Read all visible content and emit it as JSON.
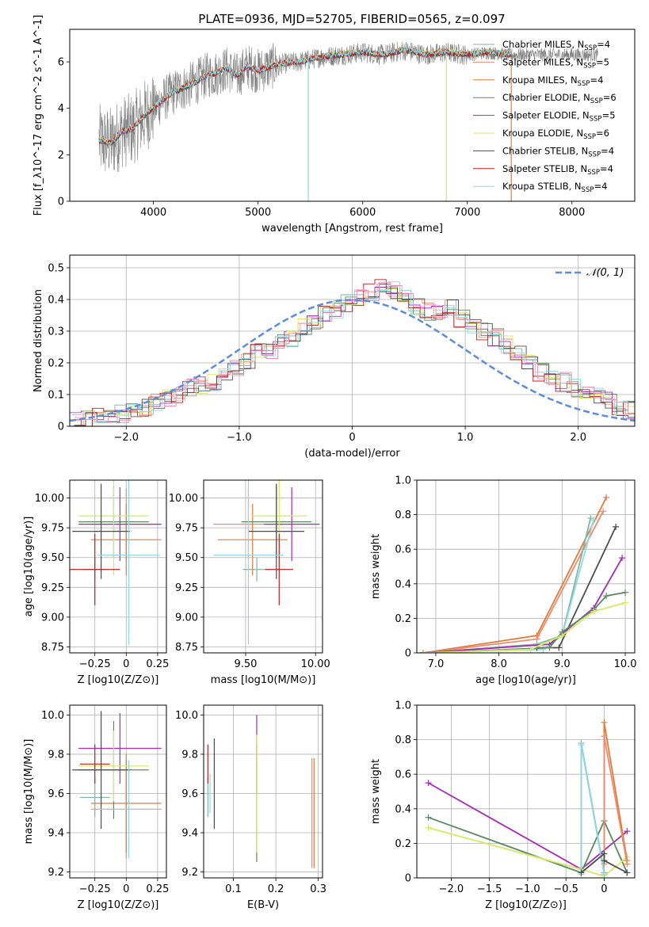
{
  "suptitle": "PLATE=0936, MJD=52705, FIBERID=0565, z=0.097",
  "models": [
    {
      "name": "Chabrier MILES",
      "n": "4",
      "color": "#7fb6a8"
    },
    {
      "name": "Salpeter MILES",
      "n": "5",
      "color": "#f08a6c"
    },
    {
      "name": "Kroupa MILES",
      "n": "4",
      "color": "#e07b39"
    },
    {
      "name": "Chabrier ELODIE",
      "n": "6",
      "color": "#5a8a60"
    },
    {
      "name": "Salpeter ELODIE",
      "n": "5",
      "color": "#a62bb8"
    },
    {
      "name": "Kroupa ELODIE",
      "n": "6",
      "color": "#d8e860"
    },
    {
      "name": "Chabrier STELIB",
      "n": "4",
      "color": "#4d4d4d"
    },
    {
      "name": "Salpeter STELIB",
      "n": "4",
      "color": "#b82020"
    },
    {
      "name": "Kroupa STELIB",
      "n": "4",
      "color": "#8ed8e0"
    }
  ],
  "extra_colors": {
    "pink": "#f08cb8",
    "teal": "#6fc4c4",
    "data_gray": "#808080",
    "normal_curve": "#5b8dd9"
  },
  "chart_data": [
    {
      "type": "line",
      "id": "spectrum",
      "xlabel": "wavelength [Angstrom, rest frame]",
      "ylabel": "Flux [f_λ10^-17 erg cm^-2 s^-1 A^-1]",
      "xlim": [
        3200,
        8600
      ],
      "ylim": [
        0,
        7.4
      ],
      "xticks": [
        4000,
        5000,
        6000,
        7000,
        8000
      ],
      "yticks": [
        0,
        2,
        4,
        6
      ],
      "legend": "top-right",
      "model_curve_x": [
        3480,
        3600,
        3700,
        3800,
        3900,
        4000,
        4100,
        4200,
        4300,
        4400,
        4500,
        4600,
        4700,
        4800,
        4900,
        5000,
        5200,
        5400,
        5600,
        5800,
        6000,
        6200,
        6400,
        6600,
        6800,
        7000,
        7200,
        7400
      ],
      "model_curve_y": [
        2.6,
        2.5,
        3.0,
        3.1,
        3.6,
        4.0,
        4.4,
        4.7,
        4.9,
        5.1,
        5.4,
        5.5,
        5.7,
        5.4,
        5.8,
        5.6,
        5.9,
        6.0,
        6.2,
        6.3,
        6.4,
        6.3,
        6.5,
        6.3,
        6.4,
        6.3,
        6.4,
        6.3
      ]
    },
    {
      "type": "histogram",
      "id": "residuals",
      "xlabel": "(data-model)/error",
      "ylabel": "Normed distribution",
      "xlim": [
        -2.5,
        2.5
      ],
      "ylim": [
        0,
        0.54
      ],
      "xticks": [
        -2,
        -1,
        0,
        1,
        2
      ],
      "yticks": [
        0.0,
        0.1,
        0.2,
        0.3,
        0.4,
        0.5
      ],
      "legend_label": "𝒩(0, 1)",
      "legend": "top-right",
      "bin_width": 0.1,
      "bin_start": -2.5,
      "series_values": [
        0.02,
        0.02,
        0.03,
        0.03,
        0.04,
        0.05,
        0.06,
        0.08,
        0.09,
        0.1,
        0.12,
        0.13,
        0.14,
        0.16,
        0.19,
        0.21,
        0.23,
        0.24,
        0.26,
        0.28,
        0.31,
        0.33,
        0.35,
        0.37,
        0.39,
        0.41,
        0.42,
        0.45,
        0.43,
        0.4,
        0.38,
        0.36,
        0.35,
        0.37,
        0.34,
        0.31,
        0.3,
        0.28,
        0.26,
        0.23,
        0.2,
        0.17,
        0.15,
        0.14,
        0.12,
        0.1,
        0.09,
        0.08,
        0.06,
        0.05
      ]
    },
    {
      "type": "errorbar",
      "id": "age_vs_Z",
      "xlabel": "Z [log10(Z/Z⊙)]",
      "ylabel": "age [log10(age/yr)]",
      "xlim": [
        -0.45,
        0.32
      ],
      "ylim": [
        8.7,
        10.15
      ],
      "xticks": [
        -0.25,
        0.0,
        0.25
      ],
      "yticks": [
        8.75,
        9.0,
        9.25,
        9.5,
        9.75,
        10.0
      ],
      "points": [
        {
          "x": -0.25,
          "xerr": 0.1,
          "y": 9.4,
          "yerr": 0.1,
          "c": 0
        },
        {
          "x": 0.0,
          "xerr": 0.28,
          "y": 9.78,
          "yerr": 0.3,
          "c": 1
        },
        {
          "x": 0.0,
          "xerr": 0.28,
          "y": 9.65,
          "yerr": 0.3,
          "c": 2
        },
        {
          "x": -0.1,
          "xerr": 0.28,
          "y": 9.8,
          "yerr": 0.3,
          "c": 3
        },
        {
          "x": -0.05,
          "xerr": 0.33,
          "y": 9.78,
          "yerr": 0.31,
          "c": 4
        },
        {
          "x": -0.1,
          "xerr": 0.28,
          "y": 9.85,
          "yerr": 0.5,
          "c": 5
        },
        {
          "x": -0.2,
          "xerr": 0.23,
          "y": 9.72,
          "yerr": 0.4,
          "c": 6
        },
        {
          "x": -0.25,
          "xerr": 0.2,
          "y": 9.4,
          "yerr": 0.3,
          "c": 7
        },
        {
          "x": 0.02,
          "xerr": 0.25,
          "y": 9.52,
          "yerr": 0.75,
          "c": 8
        }
      ]
    },
    {
      "type": "errorbar",
      "id": "age_vs_mass",
      "xlabel": "mass [log10(M/M⊙)]",
      "ylabel": "",
      "xlim": [
        9.2,
        10.05
      ],
      "ylim": [
        8.7,
        10.15
      ],
      "xticks": [
        9.5,
        10.0
      ],
      "yticks": [
        8.75,
        9.0,
        9.25,
        9.5,
        9.75,
        10.0
      ],
      "points": [
        {
          "x": 9.58,
          "xerr": 0.1,
          "y": 9.4,
          "yerr": 0.1,
          "c": 0
        },
        {
          "x": 9.52,
          "xerr": 0.25,
          "y": 9.78,
          "yerr": 0.3,
          "c": 1
        },
        {
          "x": 9.55,
          "xerr": 0.25,
          "y": 9.65,
          "yerr": 0.3,
          "c": 2
        },
        {
          "x": 9.72,
          "xerr": 0.25,
          "y": 9.8,
          "yerr": 0.3,
          "c": 3
        },
        {
          "x": 9.83,
          "xerr": 0.2,
          "y": 9.78,
          "yerr": 0.31,
          "c": 4
        },
        {
          "x": 9.74,
          "xerr": 0.2,
          "y": 9.85,
          "yerr": 0.5,
          "c": 5
        },
        {
          "x": 9.72,
          "xerr": 0.2,
          "y": 9.72,
          "yerr": 0.4,
          "c": 6
        },
        {
          "x": 9.74,
          "xerr": 0.1,
          "y": 9.4,
          "yerr": 0.3,
          "c": 7
        },
        {
          "x": 9.52,
          "xerr": 0.25,
          "y": 9.52,
          "yerr": 0.75,
          "c": 8
        }
      ]
    },
    {
      "type": "line",
      "id": "weight_vs_age",
      "xlabel": "age [log10(age/yr)]",
      "ylabel": "mass weight",
      "xlim": [
        6.7,
        10.15
      ],
      "ylim": [
        0,
        1.0
      ],
      "xticks": [
        7,
        8,
        9,
        10
      ],
      "yticks": [
        0.0,
        0.2,
        0.4,
        0.6,
        0.8,
        1.0
      ],
      "series": [
        {
          "c": 2,
          "x": [
            6.8,
            8.6,
            9.7
          ],
          "y": [
            0.0,
            0.1,
            0.9
          ]
        },
        {
          "c": 1,
          "x": [
            6.8,
            8.6,
            9.65
          ],
          "y": [
            0.0,
            0.08,
            0.82
          ]
        },
        {
          "c": 0,
          "x": [
            6.8,
            8.6,
            9.0,
            9.45
          ],
          "y": [
            0.0,
            0.05,
            0.1,
            0.78
          ]
        },
        {
          "c": 8,
          "x": [
            6.8,
            8.7,
            9.0,
            9.5
          ],
          "y": [
            0.0,
            0.02,
            0.1,
            0.77
          ]
        },
        {
          "c": 6,
          "x": [
            8.6,
            8.95,
            9.85
          ],
          "y": [
            0.03,
            0.03,
            0.73
          ]
        },
        {
          "c": 4,
          "x": [
            6.8,
            8.8,
            9.5,
            9.95
          ],
          "y": [
            0.0,
            0.05,
            0.26,
            0.55
          ]
        },
        {
          "c": 3,
          "x": [
            6.8,
            8.8,
            9.0,
            9.5,
            9.7,
            10.0
          ],
          "y": [
            0.0,
            0.03,
            0.12,
            0.25,
            0.33,
            0.35
          ]
        },
        {
          "c": 5,
          "x": [
            6.8,
            8.5,
            9.0,
            9.5,
            10.0
          ],
          "y": [
            0.0,
            0.02,
            0.1,
            0.24,
            0.29
          ]
        }
      ]
    },
    {
      "type": "errorbar",
      "id": "mass_vs_Z",
      "xlabel": "Z [log10(Z/Z⊙)]",
      "ylabel": "mass [log10(M/M⊙)]",
      "xlim": [
        -0.45,
        0.32
      ],
      "ylim": [
        9.17,
        10.05
      ],
      "xticks": [
        -0.25,
        0.0,
        0.25
      ],
      "yticks": [
        9.2,
        9.4,
        9.6,
        9.8,
        10.0
      ],
      "points": [
        {
          "x": -0.25,
          "xerr": 0.12,
          "y": 9.58,
          "yerr": 0.1,
          "c": 0
        },
        {
          "x": 0.0,
          "xerr": 0.28,
          "y": 9.52,
          "yerr": 0.25,
          "c": 1
        },
        {
          "x": 0.0,
          "xerr": 0.28,
          "y": 9.55,
          "yerr": 0.25,
          "c": 2
        },
        {
          "x": -0.1,
          "xerr": 0.28,
          "y": 9.72,
          "yerr": 0.25,
          "c": 3
        },
        {
          "x": -0.05,
          "xerr": 0.33,
          "y": 9.83,
          "yerr": 0.18,
          "c": 4
        },
        {
          "x": -0.1,
          "xerr": 0.28,
          "y": 9.74,
          "yerr": 0.18,
          "c": 5
        },
        {
          "x": -0.2,
          "xerr": 0.23,
          "y": 9.72,
          "yerr": 0.3,
          "c": 6
        },
        {
          "x": -0.25,
          "xerr": 0.12,
          "y": 9.75,
          "yerr": 0.1,
          "c": 7
        },
        {
          "x": 0.02,
          "xerr": 0.25,
          "y": 9.52,
          "yerr": 0.25,
          "c": 8
        }
      ]
    },
    {
      "type": "errorbar",
      "id": "mass_vs_ebv",
      "xlabel": "E(B-V)",
      "ylabel": "",
      "xlim": [
        0.03,
        0.31
      ],
      "ylim": [
        9.17,
        10.05
      ],
      "xticks": [
        0.1,
        0.2,
        0.3
      ],
      "yticks": [
        9.2,
        9.4,
        9.6,
        9.8,
        10.0
      ],
      "points": [
        {
          "x": 0.04,
          "y": 9.58,
          "yerr": 0.1,
          "c": 0
        },
        {
          "x": 0.285,
          "y": 9.5,
          "yerr": 0.28,
          "c": 1
        },
        {
          "x": 0.29,
          "y": 9.5,
          "yerr": 0.28,
          "c": 2
        },
        {
          "x": 0.155,
          "y": 9.55,
          "yerr": 0.3,
          "c": 3
        },
        {
          "x": 0.155,
          "y": 9.8,
          "yerr": 0.2,
          "c": 4
        },
        {
          "x": 0.155,
          "y": 9.6,
          "yerr": 0.3,
          "c": 5
        },
        {
          "x": 0.055,
          "y": 9.65,
          "yerr": 0.23,
          "c": 6
        },
        {
          "x": 0.04,
          "y": 9.75,
          "yerr": 0.1,
          "c": 7
        },
        {
          "x": 0.045,
          "y": 9.6,
          "yerr": 0.1,
          "c": 8
        }
      ]
    },
    {
      "type": "line",
      "id": "weight_vs_Z",
      "xlabel": "Z [log10(Z/Z⊙)]",
      "ylabel": "mass weight",
      "xlim": [
        -2.45,
        0.4
      ],
      "ylim": [
        0,
        1.0
      ],
      "xticks": [
        -2.0,
        -1.5,
        -1.0,
        -0.5,
        0.0
      ],
      "yticks": [
        0.0,
        0.2,
        0.4,
        0.6,
        0.8,
        1.0
      ],
      "series": [
        {
          "c": 4,
          "x": [
            -2.3,
            -0.3,
            0.3
          ],
          "y": [
            0.55,
            0.05,
            0.27
          ]
        },
        {
          "c": 3,
          "x": [
            -2.3,
            -0.3,
            0.0,
            0.3
          ],
          "y": [
            0.35,
            0.03,
            0.33,
            0.03
          ]
        },
        {
          "c": 5,
          "x": [
            -2.3,
            -0.3,
            0.0,
            0.3
          ],
          "y": [
            0.29,
            0.05,
            0.01,
            0.12
          ]
        },
        {
          "c": 2,
          "x": [
            0.0,
            0.0,
            0.3
          ],
          "y": [
            0.1,
            0.9,
            0.1
          ]
        },
        {
          "c": 1,
          "x": [
            0.0,
            0.0,
            0.3
          ],
          "y": [
            0.08,
            0.82,
            0.08
          ]
        },
        {
          "c": 0,
          "x": [
            -0.3,
            -0.3,
            0.0
          ],
          "y": [
            0.03,
            0.78,
            0.03
          ]
        },
        {
          "c": 8,
          "x": [
            -0.3,
            -0.3,
            0.0
          ],
          "y": [
            0.02,
            0.77,
            0.02
          ]
        },
        {
          "c": 6,
          "x": [
            -0.3,
            0.0,
            0.0,
            0.3
          ],
          "y": [
            0.03,
            0.14,
            0.1,
            0.03
          ]
        }
      ]
    }
  ]
}
